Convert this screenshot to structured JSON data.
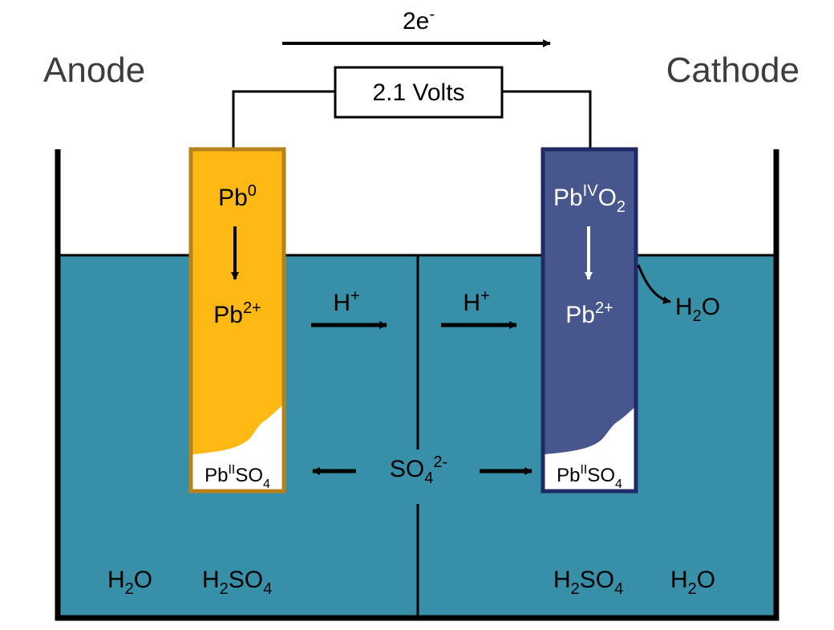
{
  "colors": {
    "electrolyte": "#3790a8",
    "anode_fill": "#fdb813",
    "anode_border": "#b8821a",
    "cathode_fill": "#47568c",
    "cathode_border": "#1f2a66",
    "wall": "#000000"
  },
  "labels": {
    "anode": "Anode",
    "cathode": "Cathode",
    "electron_base": "2e",
    "electron_sup": "-",
    "voltage": "2.1 Volts",
    "pb": "Pb",
    "zero": "0",
    "two_plus": "2+",
    "iv": "IV",
    "ii": "II",
    "o": "O",
    "two": "2",
    "so": "SO",
    "four": "4",
    "two_minus": "2-",
    "h": "H",
    "plus": "+",
    "h2o_o": "O",
    "h2so4_so": "SO"
  }
}
